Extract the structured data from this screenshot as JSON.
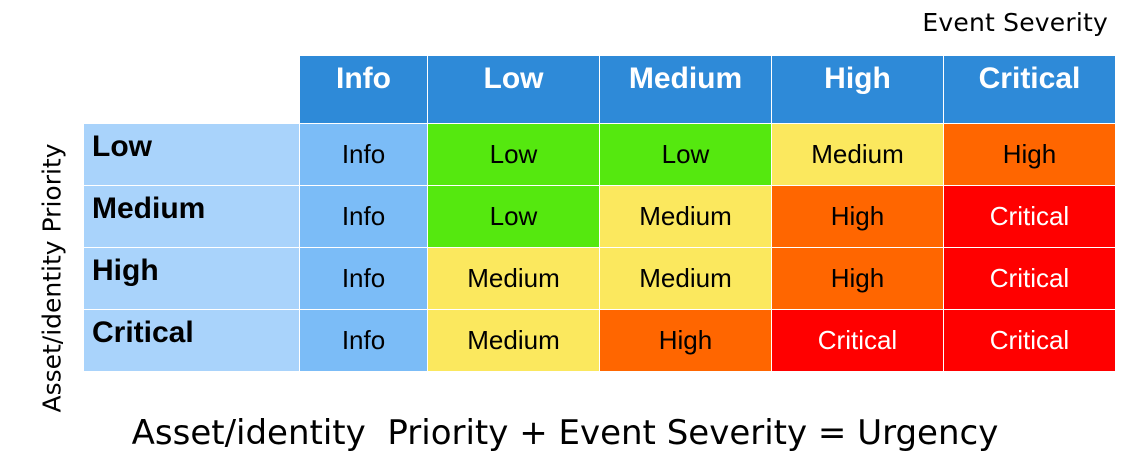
{
  "labels": {
    "event_severity": "Event Severity",
    "asset_priority": "Asset/identity Priority",
    "formula": "Asset/identity  Priority + Event Severity = Urgency"
  },
  "columns": [
    "Info",
    "Low",
    "Medium",
    "High",
    "Critical"
  ],
  "rows": [
    {
      "label": "Low",
      "cells": [
        "Info",
        "Low",
        "Low",
        "Medium",
        "High"
      ]
    },
    {
      "label": "Medium",
      "cells": [
        "Info",
        "Low",
        "Medium",
        "High",
        "Critical"
      ]
    },
    {
      "label": "High",
      "cells": [
        "Info",
        "Medium",
        "Medium",
        "High",
        "Critical"
      ]
    },
    {
      "label": "Critical",
      "cells": [
        "Info",
        "Medium",
        "High",
        "Critical",
        "Critical"
      ]
    }
  ],
  "colors": {
    "header": "#2e8ad8",
    "row_header": "#a9d3fb",
    "Info": "#7bbcf7",
    "Low": "#55e80f",
    "Medium": "#fbe85e",
    "High": "#ff6600",
    "Critical": "#ff0000"
  }
}
